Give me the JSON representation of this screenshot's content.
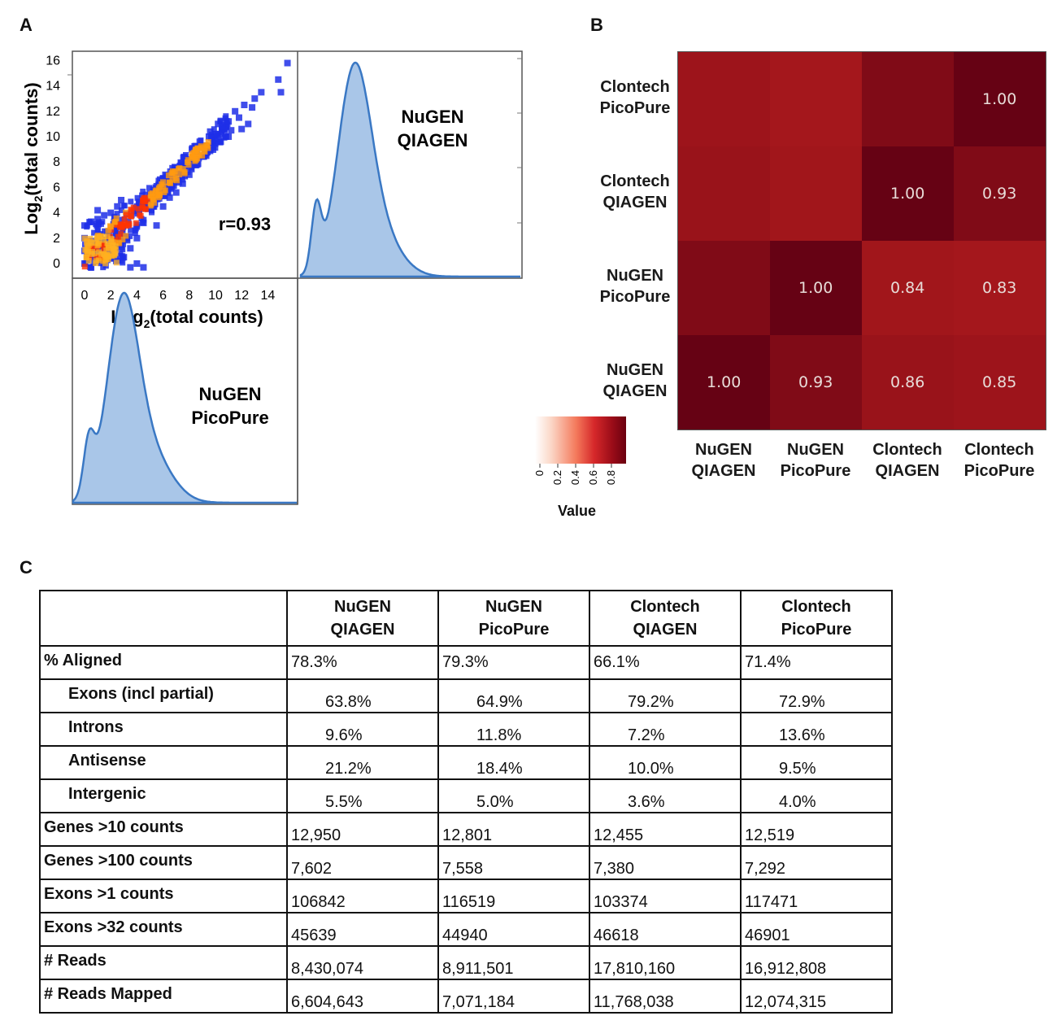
{
  "panel_labels": {
    "a": "A",
    "b": "B",
    "c": "C"
  },
  "colors": {
    "scatter_blue": "#1f2fe8",
    "density_fill": "#a9c6e8",
    "density_line": "#3a78c4",
    "heatmap_high": "#6b0010",
    "heatmap_low": "#ffffff"
  },
  "chart_data": [
    {
      "type": "scatter",
      "id": "A-scatter",
      "xlabel": "Log2(total counts)",
      "ylabel": "Log2(total counts)",
      "xlim": [
        -1,
        16
      ],
      "ylim": [
        -1,
        17
      ],
      "xticks": [
        0,
        2,
        4,
        6,
        8,
        10,
        12,
        14
      ],
      "yticks": [
        0,
        2,
        4,
        6,
        8,
        10,
        12,
        14,
        16
      ],
      "annotation": "r=0.93",
      "points_outer": [
        [
          15.5,
          15.8
        ],
        [
          14.8,
          14.5
        ],
        [
          15,
          13.5
        ],
        [
          13.5,
          13.5
        ],
        [
          13,
          13
        ],
        [
          12.8,
          12.3
        ],
        [
          12.2,
          12.5
        ],
        [
          11.8,
          11.5
        ],
        [
          11.5,
          12
        ],
        [
          12.5,
          11
        ],
        [
          11,
          11.2
        ],
        [
          11.2,
          10.5
        ],
        [
          10.5,
          10.8
        ],
        [
          10.8,
          10
        ],
        [
          10,
          10.2
        ],
        [
          9.5,
          10
        ],
        [
          9.2,
          9.3
        ],
        [
          9,
          8.5
        ],
        [
          8.5,
          8.8
        ],
        [
          8.2,
          7.9
        ],
        [
          7.8,
          8.2
        ],
        [
          7.5,
          7.2
        ],
        [
          7.2,
          6.4
        ],
        [
          6.8,
          6.9
        ],
        [
          6.5,
          6
        ],
        [
          6,
          6.4
        ],
        [
          5.8,
          5.5
        ],
        [
          5.3,
          4.5
        ],
        [
          5,
          5.5
        ],
        [
          4.5,
          3.2
        ],
        [
          4,
          2
        ],
        [
          3.5,
          1.2
        ],
        [
          3,
          0.5
        ],
        [
          4,
          0
        ],
        [
          4.5,
          -0.3
        ],
        [
          3.5,
          -0.3
        ],
        [
          2.5,
          4.5
        ],
        [
          2,
          4
        ],
        [
          1.5,
          3.8
        ],
        [
          1,
          3.5
        ],
        [
          0.5,
          3.3
        ],
        [
          0,
          3
        ],
        [
          0,
          2
        ],
        [
          0,
          1
        ],
        [
          0,
          0
        ],
        [
          0.5,
          -0.3
        ],
        [
          1,
          4.2
        ],
        [
          2.8,
          5
        ],
        [
          3.2,
          3.9
        ],
        [
          5.5,
          3
        ],
        [
          6,
          4.5
        ],
        [
          6.5,
          5.2
        ],
        [
          7,
          5.6
        ],
        [
          7.5,
          6.3
        ],
        [
          8,
          7
        ],
        [
          8.6,
          7.8
        ],
        [
          9.2,
          8.6
        ],
        [
          9.8,
          9.2
        ],
        [
          10.4,
          9.6
        ],
        [
          11,
          10
        ],
        [
          12,
          10.6
        ],
        [
          6.3,
          6.9
        ],
        [
          6.9,
          7.6
        ],
        [
          7.6,
          8.4
        ],
        [
          8.2,
          9
        ],
        [
          8.8,
          9.6
        ],
        [
          9.6,
          10.4
        ],
        [
          10.2,
          11
        ]
      ],
      "band_note": "Dense orange/red core along y=x from 0 to ~10"
    },
    {
      "type": "area",
      "id": "A-density-top",
      "label": "NuGEN QIAGEN",
      "orientation": "vertical"
    },
    {
      "type": "area",
      "id": "A-density-bottom",
      "label": "NuGEN PicoPure",
      "orientation": "horizontal"
    },
    {
      "type": "heatmap",
      "id": "B-heatmap",
      "rows_top_to_bottom": [
        "Clontech PicoPure",
        "Clontech QIAGEN",
        "NuGEN PicoPure",
        "NuGEN QIAGEN"
      ],
      "columns": [
        "NuGEN QIAGEN",
        "NuGEN PicoPure",
        "Clontech QIAGEN",
        "Clontech PicoPure"
      ],
      "values": [
        [
          0.85,
          0.83,
          0.93,
          1.0
        ],
        [
          0.86,
          0.84,
          1.0,
          0.93
        ],
        [
          0.93,
          1.0,
          0.84,
          0.83
        ],
        [
          1.0,
          0.93,
          0.86,
          0.85
        ]
      ],
      "display": [
        [
          "",
          "",
          "",
          "1.00"
        ],
        [
          "",
          "",
          "1.00",
          "0.93"
        ],
        [
          "",
          "1.00",
          "0.84",
          "0.83"
        ],
        [
          "1.00",
          "0.93",
          "0.86",
          "0.85"
        ]
      ],
      "legend_title": "Value",
      "legend_ticks": [
        "0",
        "0.2",
        "0.4",
        "0.6",
        "0.8"
      ]
    }
  ],
  "table": {
    "columns": [
      "NuGEN QIAGEN",
      "NuGEN PicoPure",
      "Clontech QIAGEN",
      "Clontech PicoPure"
    ],
    "rows": [
      {
        "label": "% Aligned",
        "sub": false,
        "values": [
          "78.3%",
          "79.3%",
          "66.1%",
          "71.4%"
        ]
      },
      {
        "label": "Exons (incl partial)",
        "sub": true,
        "values": [
          "63.8%",
          "64.9%",
          "79.2%",
          "72.9%"
        ]
      },
      {
        "label": "Introns",
        "sub": true,
        "values": [
          "9.6%",
          "11.8%",
          "7.2%",
          "13.6%"
        ]
      },
      {
        "label": "Antisense",
        "sub": true,
        "values": [
          "21.2%",
          "18.4%",
          "10.0%",
          "9.5%"
        ]
      },
      {
        "label": "Intergenic",
        "sub": true,
        "values": [
          "5.5%",
          "5.0%",
          "3.6%",
          "4.0%"
        ]
      },
      {
        "label": "Genes >10 counts",
        "sub": false,
        "values": [
          "12,950",
          "12,801",
          "12,455",
          "12,519"
        ]
      },
      {
        "label": "Genes >100 counts",
        "sub": false,
        "values": [
          "7,602",
          "7,558",
          "7,380",
          "7,292"
        ]
      },
      {
        "label": "Exons >1 counts",
        "sub": false,
        "values": [
          "106842",
          "116519",
          "103374",
          "117471"
        ]
      },
      {
        "label": "Exons >32 counts",
        "sub": false,
        "values": [
          "45639",
          "44940",
          "46618",
          "46901"
        ]
      },
      {
        "label": "# Reads",
        "sub": false,
        "values": [
          "8,430,074",
          "8,911,501",
          "17,810,160",
          "16,912,808"
        ]
      },
      {
        "label": "# Reads Mapped",
        "sub": false,
        "values": [
          "6,604,643",
          "7,071,184",
          "11,768,038",
          "12,074,315"
        ]
      }
    ]
  }
}
